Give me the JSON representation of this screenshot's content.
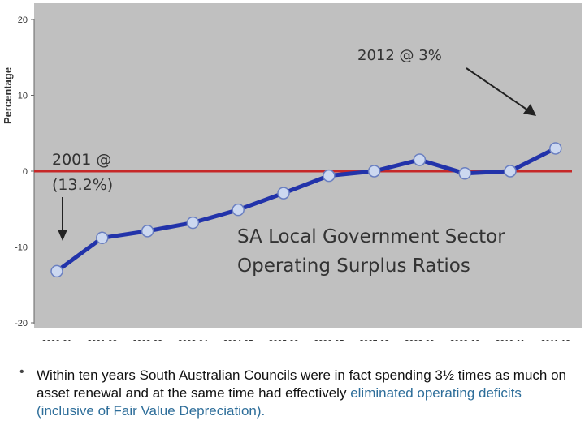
{
  "chart_data": {
    "type": "line",
    "ylabel": "Percentage",
    "ylim": [
      -20,
      20
    ],
    "yticks": [
      20,
      10,
      0,
      -10,
      -20
    ],
    "categories": [
      "2000-01",
      "2001-02",
      "2002-03",
      "2003-04",
      "2004-05",
      "2005-06",
      "2006-07",
      "2007-08",
      "2008-09",
      "2009-10",
      "2010-11",
      "2011-12"
    ],
    "series": [
      {
        "values": [
          -13.2,
          -8.8,
          -7.9,
          -6.8,
          -5.1,
          -2.9,
          -0.6,
          0.0,
          1.5,
          -0.3,
          0.0,
          3.0
        ]
      }
    ],
    "reference_line": {
      "y": 0,
      "color": "#c62828"
    },
    "line_color": "#2233aa",
    "marker_color": "#ccd8f0",
    "background": "#c0c0c0",
    "grid": false,
    "annotations": {
      "a2012": "2012 @ 3%",
      "a2001_line1": "2001 @",
      "a2001_line2": "(13.2%)"
    },
    "title_lines": [
      "SA Local Government Sector",
      "Operating Surplus Ratios"
    ]
  },
  "bullet": {
    "symbol": "•",
    "text_part1": "Within ten years South Australian Councils were in fact spending 3½ times as much on asset renewal and at the same time had effectively ",
    "text_highlight": "eliminated operating deficits (inclusive of Fair Value Depreciation)."
  }
}
